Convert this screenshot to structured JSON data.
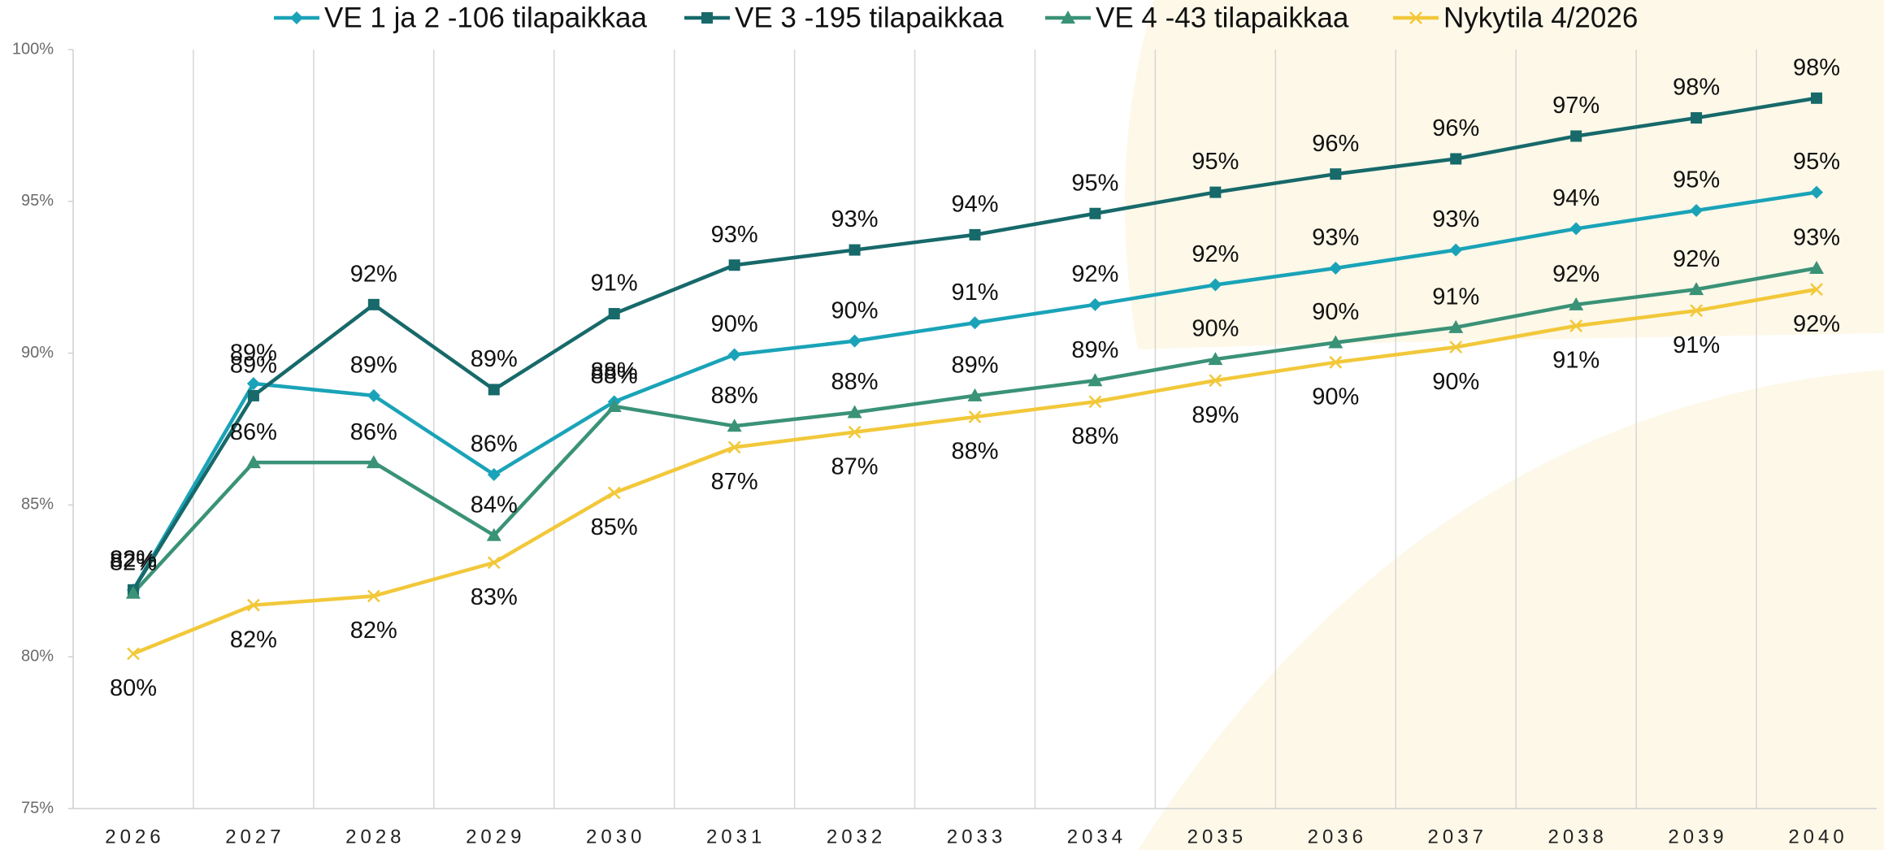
{
  "chart_data": {
    "type": "line",
    "categories": [
      "2026",
      "2027",
      "2028",
      "2029",
      "2030",
      "2031",
      "2032",
      "2033",
      "2034",
      "2035",
      "2036",
      "2037",
      "2038",
      "2039",
      "2040"
    ],
    "ylim": [
      75,
      100
    ],
    "yticks": [
      {
        "value": 75,
        "label": "75%"
      },
      {
        "value": 80,
        "label": "80%"
      },
      {
        "value": 85,
        "label": "85%"
      },
      {
        "value": 90,
        "label": "90%"
      },
      {
        "value": 95,
        "label": "95%"
      },
      {
        "value": 100,
        "label": "100%"
      }
    ],
    "grid": true,
    "legend": "top",
    "series": [
      {
        "name": "VE 1 ja 2 -106 tilapaikkaa",
        "color": "#1aa3b8",
        "marker": "diamond",
        "values": [
          82.2,
          89.0,
          88.6,
          86.0,
          88.4,
          89.95,
          90.4,
          91.0,
          91.6,
          92.25,
          92.8,
          93.4,
          94.1,
          94.7,
          95.3
        ],
        "value_labels": [
          "82%",
          "89%",
          "89%",
          "86%",
          "88%",
          "90%",
          "90%",
          "91%",
          "92%",
          "92%",
          "93%",
          "93%",
          "94%",
          "95%",
          "95%"
        ]
      },
      {
        "name": "VE 3 -195 tilapaikkaa",
        "color": "#17696a",
        "marker": "square",
        "values": [
          82.2,
          88.6,
          91.6,
          88.8,
          91.3,
          92.9,
          93.4,
          93.9,
          94.6,
          95.3,
          95.9,
          96.4,
          97.15,
          97.75,
          98.4
        ],
        "value_labels": [
          "82%",
          "89%",
          "92%",
          "89%",
          "91%",
          "93%",
          "93%",
          "94%",
          "95%",
          "95%",
          "96%",
          "96%",
          "97%",
          "98%",
          "98%"
        ]
      },
      {
        "name": "VE 4 -43 tilapaikkaa",
        "color": "#3a9277",
        "marker": "triangle",
        "values": [
          82.1,
          86.4,
          86.4,
          84.0,
          88.25,
          87.6,
          88.05,
          88.6,
          89.1,
          89.8,
          90.35,
          90.85,
          91.6,
          92.1,
          92.8
        ],
        "value_labels": [
          "82%",
          "86%",
          "86%",
          "84%",
          "88%",
          "88%",
          "88%",
          "89%",
          "89%",
          "90%",
          "90%",
          "91%",
          "92%",
          "92%",
          "93%"
        ]
      },
      {
        "name": "Nykytila 4/2026",
        "color": "#f2c83a",
        "marker": "x",
        "values": [
          80.1,
          81.7,
          82.0,
          83.1,
          85.4,
          86.9,
          87.4,
          87.9,
          88.4,
          89.1,
          89.7,
          90.2,
          90.9,
          91.4,
          92.1
        ],
        "value_labels": [
          "80%",
          "82%",
          "82%",
          "83%",
          "85%",
          "87%",
          "87%",
          "88%",
          "88%",
          "89%",
          "90%",
          "90%",
          "91%",
          "91%",
          "92%"
        ]
      }
    ]
  }
}
